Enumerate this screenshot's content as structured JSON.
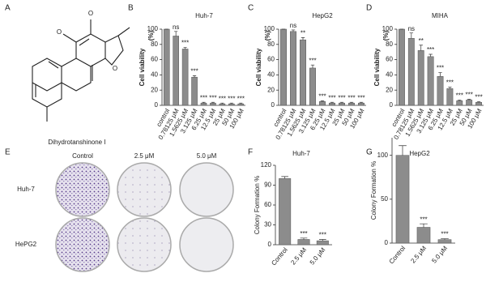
{
  "panels": {
    "letters": [
      "A",
      "B",
      "C",
      "D",
      "E",
      "F",
      "G"
    ],
    "A": {
      "compound": "Dihydrotanshinone I"
    },
    "E": {
      "columns": [
        "Control",
        "2.5 μM",
        "5.0 μM"
      ],
      "rows": [
        "Huh-7",
        "HePG2"
      ]
    }
  },
  "chart_data": [
    {
      "type": "bar",
      "title": "Huh-7",
      "ylabel": [
        "Cell viability",
        "(%)"
      ],
      "categories": [
        "control",
        "0.78125 μM",
        "1.5625 μM",
        "3.125 μM",
        "6.25 μM",
        "12.5 μM",
        "25 μM",
        "50 μM",
        "100 μM"
      ],
      "values": [
        100,
        91,
        74,
        37,
        3,
        3,
        2,
        2,
        2
      ],
      "errors": [
        0,
        6,
        2,
        2,
        1,
        1,
        1,
        1,
        1
      ],
      "significance": [
        null,
        "ns",
        "***",
        "***",
        "***",
        "***",
        "***",
        "***",
        "***"
      ],
      "color": "#8c8c8c",
      "ylim": [
        0,
        100
      ],
      "yticks": [
        0,
        20,
        40,
        60,
        80,
        100
      ]
    },
    {
      "type": "bar",
      "title": "HepG2",
      "ylabel": [
        "Cell viability",
        "(%)"
      ],
      "categories": [
        "control",
        "0.78125 μM",
        "1.5625 μM",
        "3.125 μM",
        "6.25 μM",
        "12.5 μM",
        "25 μM",
        "50 μM",
        "100 μM"
      ],
      "values": [
        100,
        97,
        86,
        49,
        5,
        3,
        3,
        3,
        3
      ],
      "errors": [
        0,
        2,
        3,
        4,
        1,
        1,
        1,
        1,
        1
      ],
      "significance": [
        null,
        "ns",
        "**",
        "***",
        "***",
        "***",
        "***",
        "***",
        "***"
      ],
      "color": "#8c8c8c",
      "ylim": [
        0,
        100
      ],
      "yticks": [
        0,
        20,
        40,
        60,
        80,
        100
      ]
    },
    {
      "type": "bar",
      "title": "MIHA",
      "ylabel": [
        "Cell viability",
        "(%)"
      ],
      "categories": [
        "control",
        "0.78125 μM",
        "1.5625 μM",
        "3.125 μM",
        "6.25 μM",
        "12.5 μM",
        "25 μM",
        "50 μM",
        "100 μM"
      ],
      "values": [
        100,
        88,
        72,
        64,
        38,
        22,
        6,
        7,
        4
      ],
      "errors": [
        0,
        7,
        7,
        3,
        5,
        2,
        1,
        1,
        1
      ],
      "significance": [
        null,
        "ns",
        "**",
        "***",
        "***",
        "***",
        "***",
        "***",
        "***"
      ],
      "color": "#8c8c8c",
      "ylim": [
        0,
        100
      ],
      "yticks": [
        0,
        20,
        40,
        60,
        80,
        100
      ]
    },
    {
      "type": "bar",
      "title": "Huh-7",
      "ylabel": [
        "Colony Formation %"
      ],
      "categories": [
        "Control",
        "2.5 μM",
        "5.0 μM"
      ],
      "values": [
        100,
        8,
        6
      ],
      "errors": [
        3,
        2,
        2
      ],
      "significance": [
        null,
        "***",
        "***"
      ],
      "color": "#8c8c8c",
      "ylim": [
        0,
        120
      ],
      "yticks": [
        0,
        30,
        60,
        90,
        120
      ]
    },
    {
      "type": "bar",
      "title": "HepG2",
      "ylabel": [
        "Colony Formation %"
      ],
      "categories": [
        "Control",
        "2.5 μM",
        "5.0 μM"
      ],
      "values": [
        100,
        18,
        4
      ],
      "errors": [
        11,
        4,
        1
      ],
      "significance": [
        null,
        "***",
        "***"
      ],
      "color": "#8c8c8c",
      "ylim": [
        0,
        120
      ],
      "yticks": [
        0,
        50,
        100
      ]
    }
  ]
}
